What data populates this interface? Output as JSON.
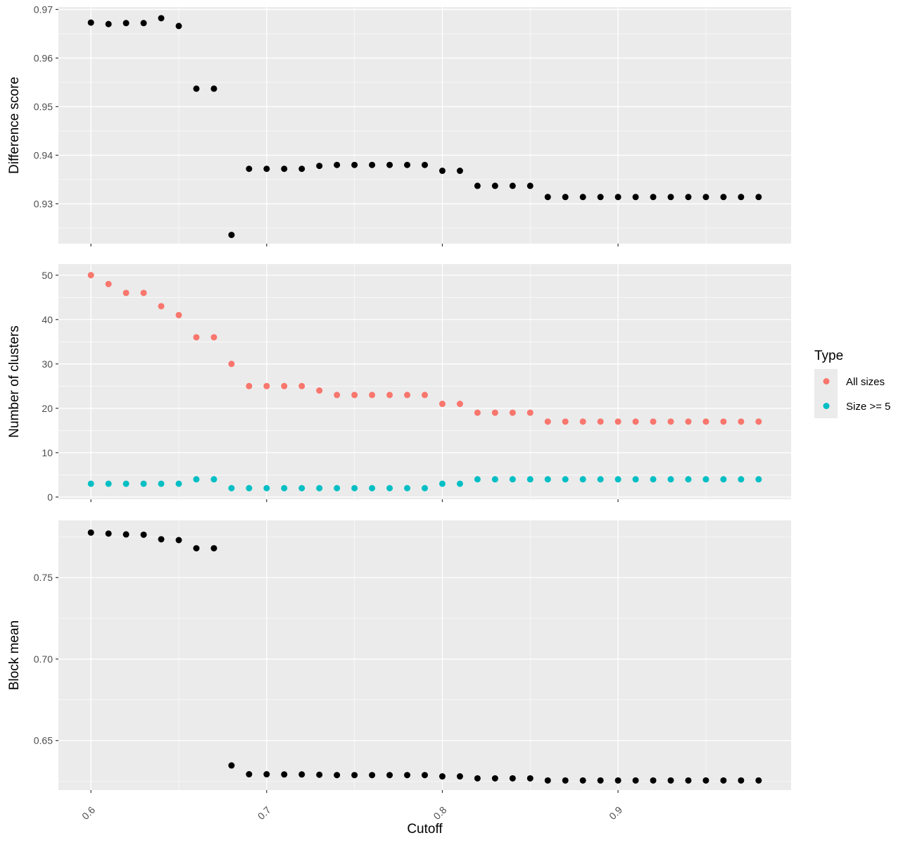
{
  "chart_data": {
    "type": "scatter",
    "x_axis": {
      "title": "Cutoff",
      "range": [
        0.5815,
        0.9985
      ],
      "ticks": [
        "0.6",
        "0.7",
        "0.8",
        "0.9"
      ],
      "tick_values": [
        0.6,
        0.7,
        0.8,
        0.9
      ]
    },
    "legend": {
      "title": "Type",
      "placement": "right",
      "entries": [
        {
          "label": "All sizes",
          "color": "#F8766D"
        },
        {
          "label": "Size >= 5",
          "color": "#00BFC4"
        }
      ]
    },
    "x": [
      0.6,
      0.61,
      0.62,
      0.63,
      0.64,
      0.65,
      0.66,
      0.67,
      0.68,
      0.69,
      0.7,
      0.71,
      0.72,
      0.73,
      0.74,
      0.75,
      0.76,
      0.77,
      0.78,
      0.79,
      0.8,
      0.81,
      0.82,
      0.83,
      0.84,
      0.85,
      0.86,
      0.87,
      0.88,
      0.89,
      0.9,
      0.91,
      0.92,
      0.93,
      0.94,
      0.95,
      0.96,
      0.97,
      0.98
    ],
    "panels": [
      {
        "ylabel": "Difference score",
        "ylim": [
          0.9218,
          0.9705
        ],
        "yticks": [
          "0.93",
          "0.94",
          "0.95",
          "0.96",
          "0.97"
        ],
        "ytick_values": [
          0.93,
          0.94,
          0.95,
          0.96,
          0.97
        ],
        "series": [
          {
            "color": "#000000",
            "values": [
              0.9673,
              0.967,
              0.9672,
              0.9672,
              0.9682,
              0.9666,
              0.9537,
              0.9537,
              0.9236,
              0.9372,
              0.9372,
              0.9372,
              0.9372,
              0.9378,
              0.938,
              0.938,
              0.938,
              0.938,
              0.938,
              0.938,
              0.9368,
              0.9368,
              0.9337,
              0.9337,
              0.9337,
              0.9337,
              0.9314,
              0.9314,
              0.9314,
              0.9314,
              0.9314,
              0.9314,
              0.9314,
              0.9314,
              0.9314,
              0.9314,
              0.9314,
              0.9314,
              0.9314
            ]
          }
        ]
      },
      {
        "ylabel": "Number of clusters",
        "ylim": [
          -0.5,
          52.5
        ],
        "yticks": [
          "0",
          "10",
          "20",
          "30",
          "40",
          "50"
        ],
        "ytick_values": [
          0,
          10,
          20,
          30,
          40,
          50
        ],
        "series": [
          {
            "name": "All sizes",
            "color": "#F8766D",
            "values": [
              50,
              48,
              46,
              46,
              43,
              41,
              36,
              36,
              30,
              25,
              25,
              25,
              25,
              24,
              23,
              23,
              23,
              23,
              23,
              23,
              21,
              21,
              19,
              19,
              19,
              19,
              17,
              17,
              17,
              17,
              17,
              17,
              17,
              17,
              17,
              17,
              17,
              17,
              17
            ]
          },
          {
            "name": "Size >= 5",
            "color": "#00BFC4",
            "values": [
              3,
              3,
              3,
              3,
              3,
              3,
              4,
              4,
              2,
              2,
              2,
              2,
              2,
              2,
              2,
              2,
              2,
              2,
              2,
              2,
              3,
              3,
              4,
              4,
              4,
              4,
              4,
              4,
              4,
              4,
              4,
              4,
              4,
              4,
              4,
              4,
              4,
              4,
              4
            ]
          }
        ]
      },
      {
        "ylabel": "Block mean",
        "ylim": [
          0.6196,
          0.7851
        ],
        "yticks": [
          "0.65",
          "0.70",
          "0.75"
        ],
        "ytick_values": [
          0.65,
          0.7,
          0.75
        ],
        "series": [
          {
            "color": "#000000",
            "values": [
              0.7776,
              0.777,
              0.7765,
              0.7763,
              0.7735,
              0.773,
              0.768,
              0.768,
              0.6347,
              0.6293,
              0.6293,
              0.6292,
              0.6292,
              0.629,
              0.6288,
              0.6288,
              0.6288,
              0.6288,
              0.6288,
              0.6288,
              0.628,
              0.628,
              0.6268,
              0.6268,
              0.6268,
              0.6268,
              0.6255,
              0.6255,
              0.6255,
              0.6255,
              0.6255,
              0.6255,
              0.6255,
              0.6255,
              0.6255,
              0.6255,
              0.6255,
              0.6255,
              0.6255
            ]
          }
        ]
      }
    ]
  }
}
